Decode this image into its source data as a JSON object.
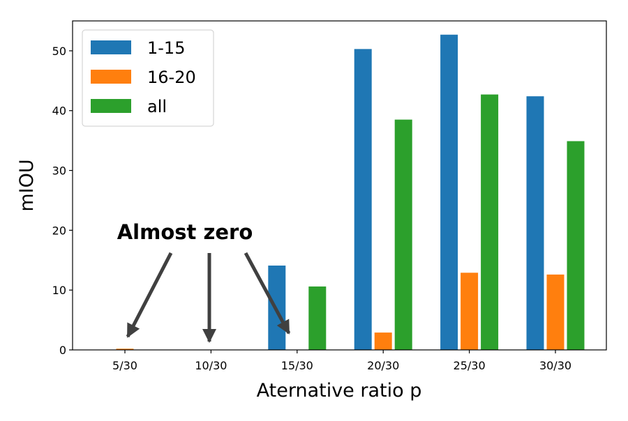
{
  "chart_data": {
    "type": "bar",
    "title": "",
    "xlabel": "Aternative ratio p",
    "ylabel": "mIOU",
    "categories": [
      "5/30",
      "10/30",
      "15/30",
      "20/30",
      "25/30",
      "30/30"
    ],
    "series": [
      {
        "name": "1-15",
        "color": "#1f77b4",
        "values": [
          0,
          0,
          14.1,
          50.3,
          52.7,
          42.4
        ]
      },
      {
        "name": "16-20",
        "color": "#ff7f0e",
        "values": [
          0.2,
          0,
          0,
          2.9,
          12.9,
          12.6
        ]
      },
      {
        "name": "all",
        "color": "#2ca02c",
        "values": [
          0,
          0,
          10.6,
          38.5,
          42.7,
          34.9
        ]
      }
    ],
    "ylim": [
      0,
      55
    ],
    "yticks": [
      0,
      10,
      20,
      30,
      40,
      50
    ],
    "grid": false,
    "legend_position": "top-left",
    "annotation": {
      "text": "Almost zero",
      "arrow_targets": [
        "5/30",
        "10/30",
        "15/30"
      ]
    }
  }
}
